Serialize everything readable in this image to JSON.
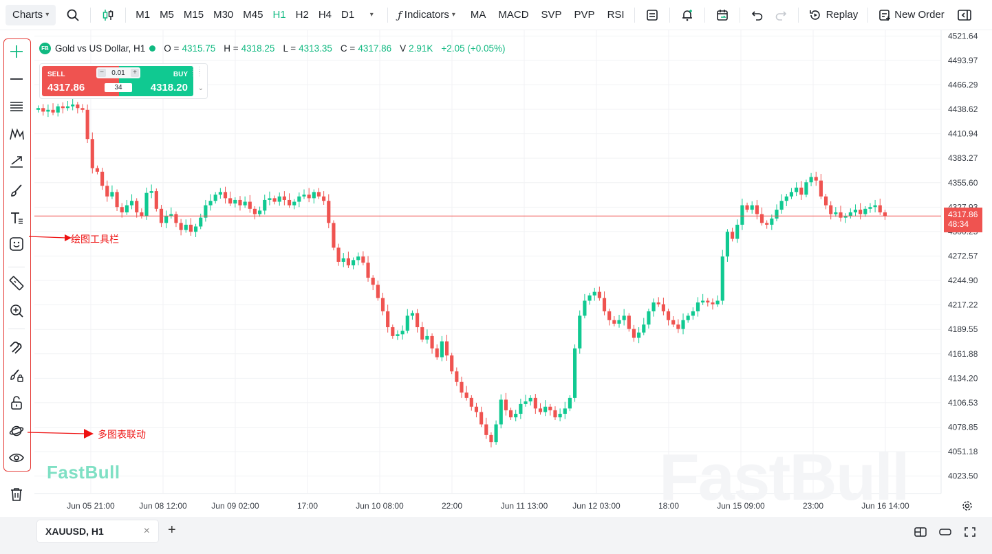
{
  "toolbar": {
    "charts_label": "Charts",
    "timeframes": [
      "M1",
      "M5",
      "M15",
      "M30",
      "M45",
      "H1",
      "H2",
      "H4",
      "D1"
    ],
    "active_timeframe": "H1",
    "indicators_label": "Indicators",
    "quick_indicators": [
      "MA",
      "MACD",
      "SVP",
      "PVP",
      "RSI"
    ],
    "replay_label": "Replay",
    "new_order_label": "New Order"
  },
  "legend": {
    "badge": "FB",
    "symbol_title": "Gold vs US Dollar, H1",
    "open_label": "O =",
    "open": "4315.75",
    "high_label": "H =",
    "high": "4318.25",
    "low_label": "L =",
    "low": "4313.35",
    "close_label": "C =",
    "close": "4317.86",
    "volume_label": "V",
    "volume": "2.91K",
    "change": "+2.05 (+0.05%)"
  },
  "trade": {
    "sell_label": "SELL",
    "sell_price": "4317.86",
    "buy_label": "BUY",
    "buy_price": "4318.20",
    "lot": "0.01",
    "spread": "34"
  },
  "annotations": {
    "drawing_toolbar": "绘图工具栏",
    "multi_chart_link": "多图表联动"
  },
  "price_tag": {
    "price": "4317.86",
    "countdown": "48:34"
  },
  "watermark": "FastBull",
  "left_tools": [
    "crosshair-icon",
    "horizontal-line-icon",
    "fib-lines-icon",
    "pattern-icon",
    "arrow-trend-icon",
    "brush-icon",
    "text-icon",
    "emoji-icon",
    "ruler-icon",
    "zoom-in-icon",
    "magnet-icon",
    "brush-lock-icon",
    "lock-icon",
    "link-planet-icon",
    "eye-icon",
    "trash-icon",
    "star-icon"
  ],
  "bottom": {
    "tab_label": "XAUUSD, H1",
    "close": "×",
    "add": "+"
  },
  "colors": {
    "up": "#10c991",
    "down": "#ef5350",
    "accent": "#10b981",
    "annotation": "#e11111"
  },
  "chart_data": {
    "type": "candlestick",
    "title": "Gold vs US Dollar, H1",
    "y_ticks": [
      "4521.64",
      "4493.97",
      "4466.29",
      "4438.62",
      "4410.94",
      "4383.27",
      "4355.60",
      "4327.93",
      "4300.25",
      "4272.57",
      "4244.90",
      "4217.22",
      "4189.55",
      "4161.88",
      "4134.20",
      "4106.53",
      "4078.85",
      "4051.18",
      "4023.50"
    ],
    "ylim": [
      4010,
      4525
    ],
    "x_ticks": [
      "Jun 05 21:00",
      "Jun 08 12:00",
      "Jun 09 02:00",
      "17:00",
      "Jun 10 08:00",
      "22:00",
      "Jun 11 13:00",
      "Jun 12 03:00",
      "18:00",
      "Jun 15 09:00",
      "23:00",
      "Jun 16 14:00"
    ],
    "current_price": 4317.86,
    "close_series": [
      4440,
      4436,
      4438,
      4435,
      4442,
      4440,
      4442,
      4444,
      4440,
      4438,
      4405,
      4372,
      4368,
      4352,
      4340,
      4345,
      4328,
      4322,
      4330,
      4335,
      4322,
      4318,
      4344,
      4346,
      4326,
      4310,
      4318,
      4320,
      4310,
      4302,
      4308,
      4300,
      4306,
      4316,
      4330,
      4335,
      4342,
      4345,
      4338,
      4332,
      4336,
      4330,
      4334,
      4326,
      4320,
      4324,
      4336,
      4338,
      4334,
      4340,
      4336,
      4330,
      4334,
      4340,
      4342,
      4338,
      4345,
      4340,
      4335,
      4310,
      4282,
      4266,
      4270,
      4262,
      4268,
      4272,
      4265,
      4248,
      4240,
      4225,
      4210,
      4192,
      4182,
      4184,
      4188,
      4205,
      4208,
      4192,
      4178,
      4182,
      4168,
      4158,
      4176,
      4160,
      4142,
      4130,
      4118,
      4112,
      4102,
      4096,
      4082,
      4070,
      4062,
      4082,
      4110,
      4098,
      4090,
      4094,
      4105,
      4108,
      4112,
      4100,
      4096,
      4102,
      4098,
      4090,
      4094,
      4100,
      4112,
      4168,
      4205,
      4222,
      4228,
      4232,
      4225,
      4210,
      4200,
      4196,
      4200,
      4205,
      4190,
      4180,
      4186,
      4195,
      4210,
      4220,
      4218,
      4210,
      4200,
      4195,
      4190,
      4200,
      4205,
      4210,
      4220,
      4222,
      4220,
      4218,
      4222,
      4272,
      4300,
      4292,
      4308,
      4330,
      4325,
      4330,
      4320,
      4310,
      4308,
      4315,
      4325,
      4335,
      4340,
      4345,
      4350,
      4342,
      4356,
      4362,
      4358,
      4340,
      4330,
      4320,
      4322,
      4316,
      4318,
      4322,
      4325,
      4320,
      4326,
      4328,
      4330,
      4322,
      4318
    ]
  }
}
